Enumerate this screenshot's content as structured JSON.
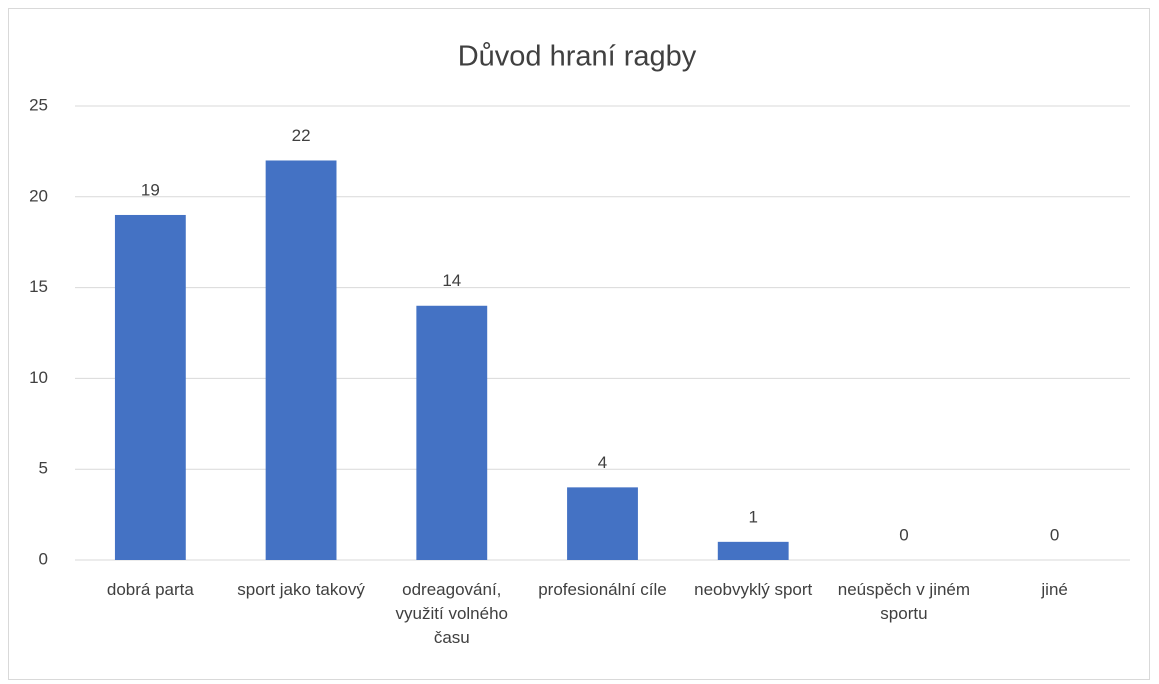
{
  "chart_data": {
    "type": "bar",
    "title": "Důvod hraní ragby",
    "categories": [
      "dobrá parta",
      "sport jako takový",
      "odreagování, využití volného času",
      "profesionální cíle",
      "neobvyklý sport",
      "neúspěch v jiném sportu",
      "jiné"
    ],
    "values": [
      19,
      22,
      14,
      4,
      1,
      0,
      0
    ],
    "color": "#4472c4",
    "ylim": [
      0,
      25
    ],
    "yticks": [
      0,
      5,
      10,
      15,
      20,
      25
    ],
    "grid": true
  }
}
